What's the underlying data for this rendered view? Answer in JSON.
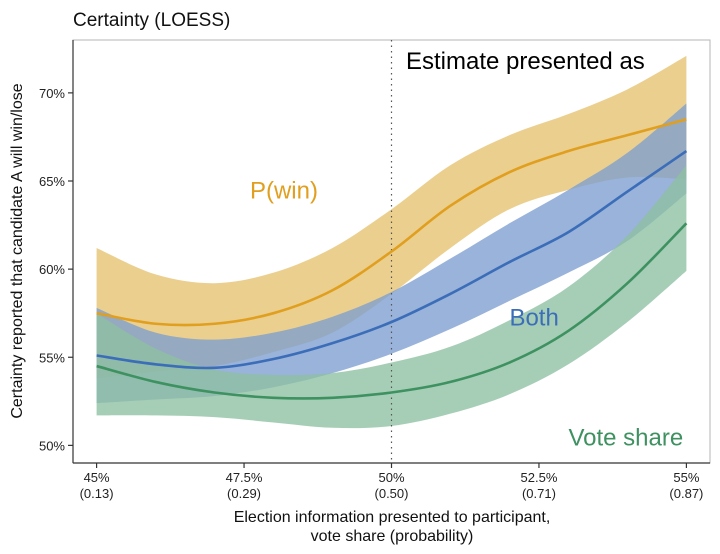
{
  "chart_data": {
    "type": "line",
    "title": "Certainty (LOESS)",
    "xlabel": "Election information presented to participant,\nvote share (probability)",
    "ylabel": "Certainty reported that candidate A will win/lose",
    "xlim": [
      44.6,
      55.4
    ],
    "ylim": [
      49.0,
      73.0
    ],
    "x_ticks": [
      {
        "value": 45,
        "label": "45%",
        "sublabel": "(0.13)"
      },
      {
        "value": 47.5,
        "label": "47.5%",
        "sublabel": "(0.29)"
      },
      {
        "value": 50,
        "label": "50%",
        "sublabel": "(0.50)"
      },
      {
        "value": 52.5,
        "label": "52.5%",
        "sublabel": "(0.71)"
      },
      {
        "value": 55,
        "label": "55%",
        "sublabel": "(0.87)"
      }
    ],
    "y_ticks": [
      {
        "value": 50,
        "label": "50%"
      },
      {
        "value": 55,
        "label": "55%"
      },
      {
        "value": 60,
        "label": "60%"
      },
      {
        "value": 65,
        "label": "65%"
      },
      {
        "value": 70,
        "label": "70%"
      }
    ],
    "reference_line": {
      "x": 50,
      "style": "dotted"
    },
    "legend_title": "Estimate presented as",
    "grid": false,
    "x": [
      45,
      46,
      47,
      48,
      49,
      50,
      51,
      52,
      53,
      54,
      55
    ],
    "series": [
      {
        "name": "P(win)",
        "color": "#E09F1F",
        "band_color": "#E6C26E",
        "label_position": [
          47.6,
          64.0
        ],
        "values": [
          57.5,
          56.9,
          56.9,
          57.5,
          58.8,
          61.0,
          63.6,
          65.5,
          66.7,
          67.6,
          68.5
        ],
        "lower": [
          53.8,
          54.2,
          54.5,
          55.3,
          56.4,
          58.6,
          61.2,
          63.4,
          64.5,
          65.2,
          65.1
        ],
        "upper": [
          61.2,
          59.7,
          59.2,
          59.8,
          61.2,
          63.4,
          65.9,
          67.6,
          68.8,
          70.2,
          72.1
        ]
      },
      {
        "name": "Both",
        "color": "#3B6DB8",
        "band_color": "#7C9ED0",
        "label_position": [
          52.0,
          56.8
        ],
        "values": [
          55.1,
          54.6,
          54.4,
          54.9,
          55.8,
          57.0,
          58.6,
          60.4,
          62.1,
          64.4,
          66.7
        ],
        "lower": [
          52.4,
          52.6,
          52.8,
          53.3,
          54.1,
          55.2,
          56.6,
          58.2,
          59.8,
          61.6,
          64.3
        ],
        "upper": [
          57.8,
          56.4,
          56.0,
          56.4,
          57.3,
          58.7,
          60.6,
          62.6,
          64.5,
          66.6,
          69.4
        ]
      },
      {
        "name": "Vote share",
        "color": "#3E9160",
        "band_color": "#8DC0A2",
        "label_position": [
          53.0,
          50.0
        ],
        "values": [
          54.5,
          53.6,
          53.0,
          52.7,
          52.7,
          53.0,
          53.6,
          54.7,
          56.5,
          59.2,
          62.6
        ],
        "lower": [
          51.7,
          51.7,
          51.6,
          51.3,
          51.0,
          51.1,
          51.8,
          52.9,
          54.6,
          57.0,
          59.9
        ],
        "upper": [
          57.5,
          55.5,
          54.3,
          54.0,
          54.1,
          54.7,
          55.6,
          57.1,
          59.0,
          61.9,
          65.9
        ]
      }
    ]
  }
}
